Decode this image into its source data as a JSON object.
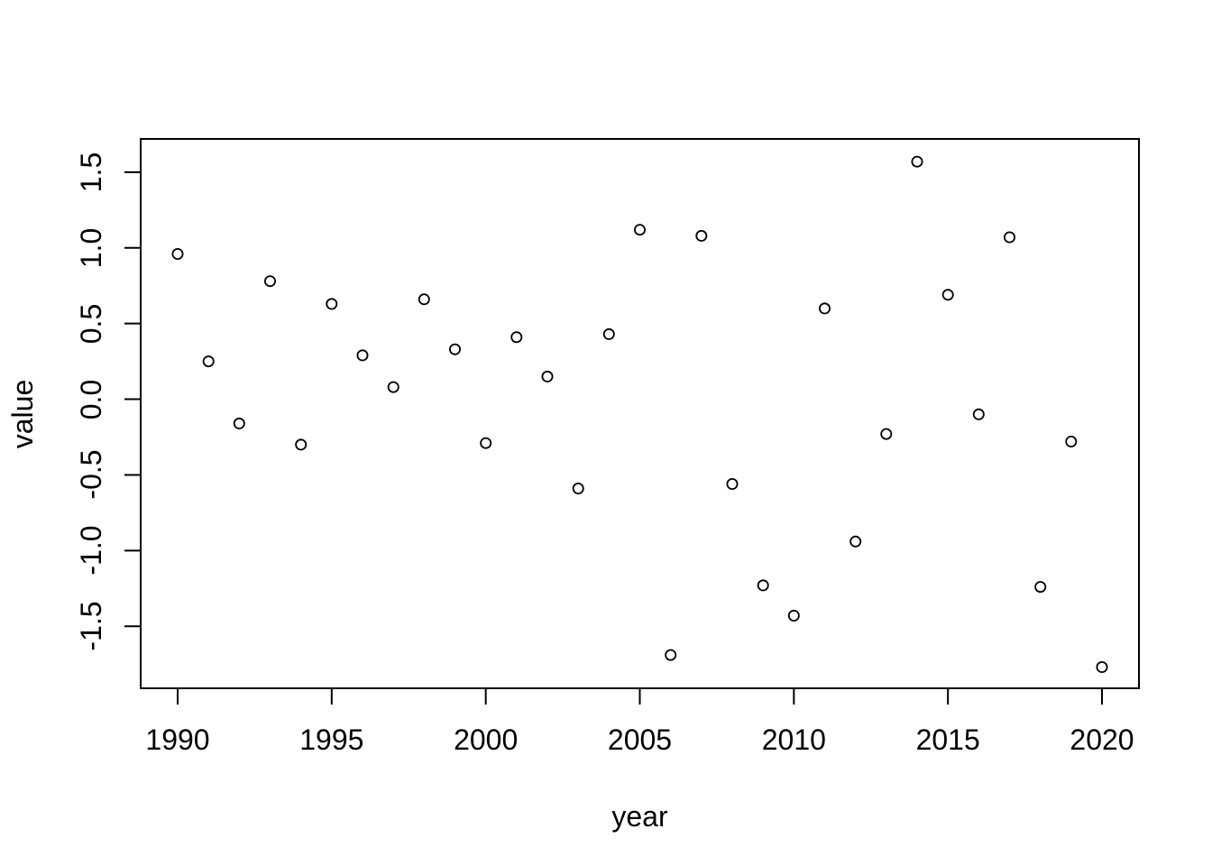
{
  "chart_data": {
    "type": "scatter",
    "title": "",
    "xlabel": "year",
    "ylabel": "value",
    "x": [
      1990,
      1991,
      1992,
      1993,
      1994,
      1995,
      1996,
      1997,
      1998,
      1999,
      2000,
      2001,
      2002,
      2003,
      2004,
      2005,
      2006,
      2007,
      2008,
      2009,
      2010,
      2011,
      2012,
      2013,
      2014,
      2015,
      2016,
      2017,
      2018,
      2019,
      2020
    ],
    "y": [
      0.96,
      0.25,
      -0.16,
      0.78,
      -0.3,
      0.63,
      0.29,
      0.08,
      0.66,
      0.33,
      -0.29,
      0.41,
      0.15,
      -0.59,
      0.43,
      1.12,
      -1.69,
      1.08,
      -0.56,
      -1.23,
      -1.43,
      0.6,
      -0.94,
      -0.23,
      1.57,
      0.69,
      -0.1,
      1.07,
      -1.24,
      -0.28,
      -1.77
    ],
    "x_ticks": [
      1990,
      1995,
      2000,
      2005,
      2010,
      2015,
      2020
    ],
    "x_tick_labels": [
      "1990",
      "1995",
      "2000",
      "2005",
      "2010",
      "2015",
      "2020"
    ],
    "y_ticks": [
      -1.5,
      -1.0,
      -0.5,
      0.0,
      0.5,
      1.0,
      1.5
    ],
    "y_tick_labels": [
      "-1.5",
      "-1.0",
      "-0.5",
      "0.0",
      "0.5",
      "1.0",
      "1.5"
    ],
    "xlim": [
      1988.8,
      2021.2
    ],
    "ylim": [
      -1.91,
      1.72
    ],
    "marker": "open-circle",
    "grid": false,
    "legend": null,
    "colors": {
      "point_stroke": "#000000",
      "axis_stroke": "#000000",
      "text": "#000000",
      "background": "#ffffff"
    }
  }
}
